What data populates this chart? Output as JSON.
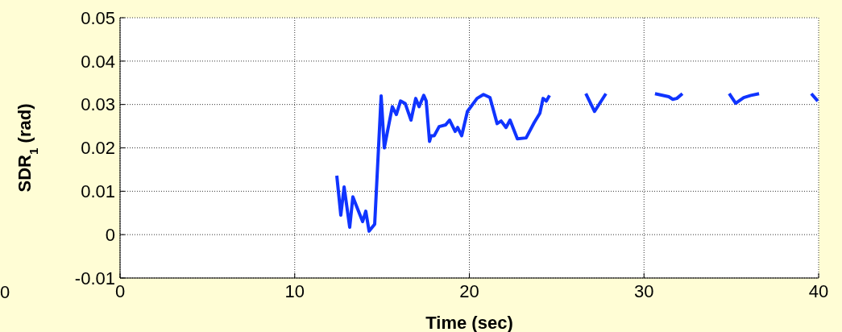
{
  "chart_data": {
    "type": "line",
    "xlabel": "Time (sec)",
    "ylabel": "SDR$_{1}$ (rad)",
    "annotations": [
      "0"
    ],
    "x": [
      12.41,
      12.64,
      12.83,
      13.15,
      13.33,
      13.89,
      14.07,
      14.26,
      14.58,
      14.95,
      15.13,
      15.59,
      15.82,
      16.06,
      16.33,
      16.66,
      16.93,
      17.12,
      17.39,
      17.53,
      17.72,
      17.81,
      17.99,
      18.27,
      18.64,
      18.87,
      19.19,
      19.33,
      19.56,
      19.89,
      20.44,
      20.81,
      21.18,
      21.59,
      21.82,
      22.1,
      22.33,
      22.75,
      23.25,
      23.71,
      24.04,
      24.22,
      24.41,
      24.59,
      25.5,
      26.67,
      27.17,
      27.82,
      29,
      30.63,
      31.42,
      31.65,
      31.88,
      32.2,
      33.5,
      34.88,
      35.25,
      35.71,
      36.12,
      36.59,
      38,
      39.58,
      39.95
    ],
    "series": [
      {
        "color": "#1034ff",
        "values": [
          0.0136,
          0.0045,
          0.011,
          0.0017,
          0.0087,
          0.003,
          0.0054,
          0.0008,
          0.0024,
          0.032,
          0.02,
          0.0295,
          0.0277,
          0.0308,
          0.0302,
          0.0264,
          0.0314,
          0.0295,
          0.0321,
          0.0308,
          0.0215,
          0.0228,
          0.0228,
          0.0249,
          0.0253,
          0.0264,
          0.0238,
          0.0247,
          0.0228,
          0.0284,
          0.0314,
          0.0323,
          0.0316,
          0.0256,
          0.0262,
          0.0247,
          0.0264,
          0.0221,
          0.0223,
          0.0258,
          0.028,
          0.0314,
          0.0308,
          0.0321,
          null,
          0.0325,
          0.0284,
          0.0325,
          null,
          0.0325,
          0.0318,
          0.0312,
          0.0314,
          0.0325,
          null,
          0.0325,
          0.0303,
          0.0316,
          0.0321,
          0.0325,
          null,
          0.0325,
          0.0308
        ]
      }
    ],
    "xlim": [
      0,
      40
    ],
    "xticks": [
      0,
      10,
      20,
      30,
      40
    ],
    "ylim": [
      -0.01,
      0.05
    ],
    "yticks": [
      -0.01,
      0,
      0.01,
      0.02,
      0.03,
      0.04,
      0.05
    ],
    "grid": true,
    "marker": "none",
    "line_style": "solid"
  }
}
